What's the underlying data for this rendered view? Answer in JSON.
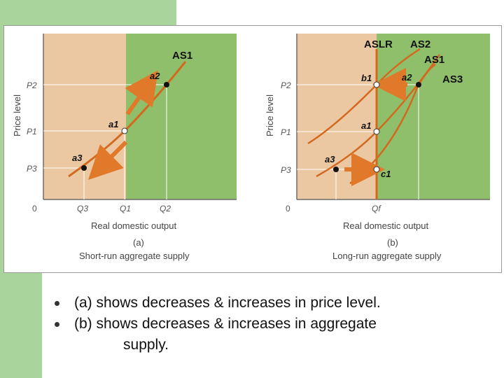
{
  "slide": {
    "bullets": [
      {
        "text": "(a) shows decreases & increases in price level."
      },
      {
        "text": "(b) shows decreases & increases in aggregate\n            supply."
      }
    ]
  },
  "colors": {
    "left_region": "#ecc8a2",
    "right_region": "#8fbf6b",
    "curve": "#d2691e",
    "slide_accent": "#a9d49c"
  },
  "chart_data": [
    {
      "type": "line",
      "panel_label": "(a)",
      "caption": "Short-run aggregate supply",
      "xlabel": "Real domestic output",
      "ylabel": "Price level",
      "origin_label": "0",
      "x_ticks": [
        "Q3",
        "Q1",
        "Q2"
      ],
      "y_ticks": [
        "P2",
        "P1",
        "P3"
      ],
      "series": [
        {
          "name": "AS1",
          "points": [
            [
              "Q3",
              "P3"
            ],
            [
              "Q1",
              "P1"
            ],
            [
              "Q2",
              "P2"
            ]
          ]
        }
      ],
      "points": [
        {
          "label": "a2",
          "x": "Q2",
          "y": "P2"
        },
        {
          "label": "a1",
          "x": "Q1",
          "y": "P1"
        },
        {
          "label": "a3",
          "x": "Q3",
          "y": "P3"
        }
      ]
    },
    {
      "type": "line",
      "panel_label": "(b)",
      "caption": "Long-run aggregate supply",
      "xlabel": "Real domestic output",
      "ylabel": "Price level",
      "origin_label": "0",
      "x_ticks": [
        "Qf"
      ],
      "y_ticks": [
        "P2",
        "P1",
        "P3"
      ],
      "series": [
        {
          "name": "ASLR"
        },
        {
          "name": "AS2"
        },
        {
          "name": "AS1"
        },
        {
          "name": "AS3"
        }
      ],
      "points": [
        {
          "label": "b1",
          "x": "Qf",
          "y": "P2"
        },
        {
          "label": "a2",
          "y": "P2"
        },
        {
          "label": "a1",
          "x": "Qf",
          "y": "P1"
        },
        {
          "label": "a3",
          "y": "P3"
        },
        {
          "label": "c1",
          "x": "Qf",
          "y": "P3"
        }
      ]
    }
  ]
}
